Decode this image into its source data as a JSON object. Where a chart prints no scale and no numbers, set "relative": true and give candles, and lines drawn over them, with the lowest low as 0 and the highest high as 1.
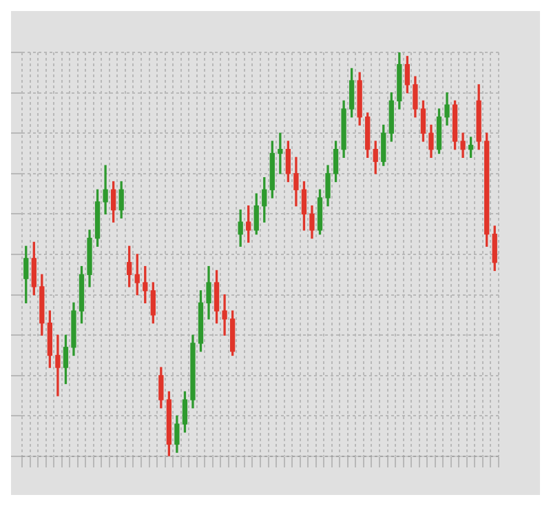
{
  "chart_data": {
    "type": "candlestick",
    "relative": true,
    "grid": true,
    "categories": [
      null,
      null,
      null,
      null,
      null,
      null,
      null,
      null,
      null,
      null,
      null,
      null,
      null,
      null,
      null,
      null,
      null,
      null,
      null,
      null,
      null,
      null,
      null,
      null,
      null,
      null,
      null,
      null,
      null,
      null,
      null,
      null,
      null,
      null,
      null,
      null,
      null,
      null,
      null,
      null,
      null,
      null,
      null,
      null,
      null,
      null,
      null,
      null,
      null,
      null,
      null,
      null,
      null,
      null,
      null,
      null,
      null,
      null,
      null,
      null
    ],
    "ohlc": [
      [
        0.44,
        0.52,
        0.38,
        0.49
      ],
      [
        0.49,
        0.53,
        0.4,
        0.42
      ],
      [
        0.42,
        0.45,
        0.3,
        0.33
      ],
      [
        0.33,
        0.36,
        0.22,
        0.25
      ],
      [
        0.25,
        0.3,
        0.15,
        0.22
      ],
      [
        0.22,
        0.3,
        0.18,
        0.27
      ],
      [
        0.27,
        0.38,
        0.25,
        0.36
      ],
      [
        0.36,
        0.47,
        0.33,
        0.45
      ],
      [
        0.45,
        0.56,
        0.42,
        0.54
      ],
      [
        0.54,
        0.66,
        0.52,
        0.63
      ],
      [
        0.63,
        0.72,
        0.6,
        0.66
      ],
      [
        0.66,
        0.68,
        0.58,
        0.61
      ],
      [
        0.61,
        0.68,
        0.59,
        0.66
      ],
      [
        0.48,
        0.52,
        0.42,
        0.45
      ],
      [
        0.45,
        0.5,
        0.4,
        0.43
      ],
      [
        0.43,
        0.47,
        0.38,
        0.41
      ],
      [
        0.41,
        0.43,
        0.33,
        0.35
      ],
      [
        0.2,
        0.22,
        0.12,
        0.14
      ],
      [
        0.14,
        0.16,
        0,
        0.03
      ],
      [
        0.03,
        0.1,
        0.01,
        0.08
      ],
      [
        0.08,
        0.16,
        0.06,
        0.14
      ],
      [
        0.14,
        0.3,
        0.12,
        0.28
      ],
      [
        0.28,
        0.41,
        0.26,
        0.38
      ],
      [
        0.38,
        0.47,
        0.34,
        0.43
      ],
      [
        0.43,
        0.46,
        0.33,
        0.36
      ],
      [
        0.36,
        0.4,
        0.3,
        0.34
      ],
      [
        0.34,
        0.36,
        0.25,
        0.26
      ],
      [
        0.55,
        0.61,
        0.52,
        0.58
      ],
      [
        0.58,
        0.62,
        0.53,
        0.56
      ],
      [
        0.56,
        0.65,
        0.55,
        0.62
      ],
      [
        0.62,
        0.69,
        0.58,
        0.66
      ],
      [
        0.66,
        0.78,
        0.64,
        0.75
      ],
      [
        0.75,
        0.8,
        0.7,
        0.76
      ],
      [
        0.76,
        0.78,
        0.68,
        0.7
      ],
      [
        0.7,
        0.74,
        0.62,
        0.66
      ],
      [
        0.66,
        0.68,
        0.56,
        0.6
      ],
      [
        0.6,
        0.62,
        0.54,
        0.56
      ],
      [
        0.56,
        0.66,
        0.55,
        0.64
      ],
      [
        0.64,
        0.72,
        0.62,
        0.7
      ],
      [
        0.7,
        0.78,
        0.68,
        0.76
      ],
      [
        0.76,
        0.88,
        0.74,
        0.86
      ],
      [
        0.86,
        0.96,
        0.84,
        0.93
      ],
      [
        0.93,
        0.95,
        0.82,
        0.84
      ],
      [
        0.84,
        0.85,
        0.74,
        0.76
      ],
      [
        0.76,
        0.78,
        0.7,
        0.73
      ],
      [
        0.73,
        0.82,
        0.72,
        0.8
      ],
      [
        0.8,
        0.9,
        0.78,
        0.88
      ],
      [
        0.88,
        1,
        0.86,
        0.97
      ],
      [
        0.97,
        0.99,
        0.9,
        0.92
      ],
      [
        0.92,
        0.94,
        0.84,
        0.86
      ],
      [
        0.86,
        0.88,
        0.78,
        0.8
      ],
      [
        0.8,
        0.82,
        0.74,
        0.76
      ],
      [
        0.76,
        0.86,
        0.75,
        0.84
      ],
      [
        0.84,
        0.9,
        0.82,
        0.87
      ],
      [
        0.87,
        0.88,
        0.76,
        0.78
      ],
      [
        0.78,
        0.8,
        0.74,
        0.76
      ],
      [
        0.76,
        0.79,
        0.74,
        0.77
      ],
      [
        0.88,
        0.92,
        0.76,
        0.78
      ],
      [
        0.78,
        0.8,
        0.52,
        0.55
      ],
      [
        0.55,
        0.57,
        0.46,
        0.48
      ]
    ]
  }
}
